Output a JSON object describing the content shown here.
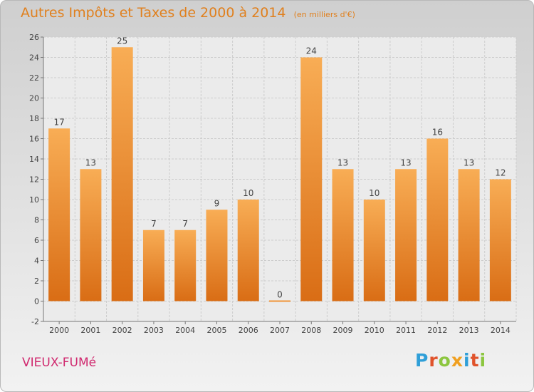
{
  "chart_data": {
    "type": "bar",
    "title": "Autres Impôts et Taxes de 2000 à 2014",
    "subtitle": "(en milliers d'€)",
    "categories": [
      "2000",
      "2001",
      "2002",
      "2003",
      "2004",
      "2005",
      "2006",
      "2007",
      "2008",
      "2009",
      "2010",
      "2011",
      "2012",
      "2013",
      "2014"
    ],
    "values": [
      17,
      13,
      25,
      7,
      7,
      9,
      10,
      0,
      24,
      13,
      10,
      13,
      16,
      13,
      12
    ],
    "ylim": [
      -2,
      26
    ],
    "yticks": [
      -2,
      0,
      2,
      4,
      6,
      8,
      10,
      12,
      14,
      16,
      18,
      20,
      22,
      24,
      26
    ],
    "grid": true,
    "bar_color": "#f0953a",
    "bar_color_light": "#f8ad55",
    "bar_color_dark": "#d96d15"
  },
  "footer": {
    "commune": "VIEUX-FUMé",
    "logo_letters": [
      "P",
      "r",
      "o",
      "x",
      "i",
      "t",
      "i"
    ],
    "logo_colors": [
      "#2f9fd8",
      "#e0532b",
      "#8cc63f",
      "#f0a020",
      "#2f9fd8",
      "#e0532b",
      "#8cc63f"
    ]
  }
}
